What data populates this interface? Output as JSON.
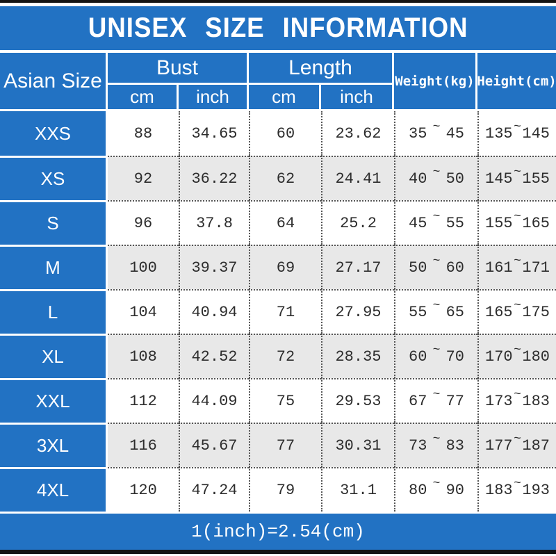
{
  "title": "UNISEX SIZE INFORMATION",
  "header": {
    "size_col": "Asian Size",
    "bust": {
      "label": "Bust",
      "sub": [
        "cm",
        "inch"
      ]
    },
    "length": {
      "label": "Length",
      "sub": [
        "cm",
        "inch"
      ]
    },
    "weight": "Weight(kg)",
    "height": "Height(cm)"
  },
  "tilde": "~",
  "rows": [
    {
      "size": "XXS",
      "bust_cm": "88",
      "bust_in": "34.65",
      "len_cm": "60",
      "len_in": "23.62",
      "w_min": "35",
      "w_max": "45",
      "h_min": "135",
      "h_max": "145"
    },
    {
      "size": "XS",
      "bust_cm": "92",
      "bust_in": "36.22",
      "len_cm": "62",
      "len_in": "24.41",
      "w_min": "40",
      "w_max": "50",
      "h_min": "145",
      "h_max": "155"
    },
    {
      "size": "S",
      "bust_cm": "96",
      "bust_in": "37.8",
      "len_cm": "64",
      "len_in": "25.2",
      "w_min": "45",
      "w_max": "55",
      "h_min": "155",
      "h_max": "165"
    },
    {
      "size": "M",
      "bust_cm": "100",
      "bust_in": "39.37",
      "len_cm": "69",
      "len_in": "27.17",
      "w_min": "50",
      "w_max": "60",
      "h_min": "161",
      "h_max": "171"
    },
    {
      "size": "L",
      "bust_cm": "104",
      "bust_in": "40.94",
      "len_cm": "71",
      "len_in": "27.95",
      "w_min": "55",
      "w_max": "65",
      "h_min": "165",
      "h_max": "175"
    },
    {
      "size": "XL",
      "bust_cm": "108",
      "bust_in": "42.52",
      "len_cm": "72",
      "len_in": "28.35",
      "w_min": "60",
      "w_max": "70",
      "h_min": "170",
      "h_max": "180"
    },
    {
      "size": "XXL",
      "bust_cm": "112",
      "bust_in": "44.09",
      "len_cm": "75",
      "len_in": "29.53",
      "w_min": "67",
      "w_max": "77",
      "h_min": "173",
      "h_max": "183"
    },
    {
      "size": "3XL",
      "bust_cm": "116",
      "bust_in": "45.67",
      "len_cm": "77",
      "len_in": "30.31",
      "w_min": "73",
      "w_max": "83",
      "h_min": "177",
      "h_max": "187"
    },
    {
      "size": "4XL",
      "bust_cm": "120",
      "bust_in": "47.24",
      "len_cm": "79",
      "len_in": "31.1",
      "w_min": "80",
      "w_max": "90",
      "h_min": "183",
      "h_max": "193"
    }
  ],
  "footer_note": "1(inch)=2.54(cm)",
  "colors": {
    "accent_blue": "#2272c3",
    "alt_row_gray": "#e8e8e8",
    "bar_black": "#141414",
    "data_text": "#2d2d2d"
  },
  "chart_data": {
    "type": "table",
    "title": "UNISEX SIZE INFORMATION",
    "columns": [
      "Asian Size",
      "Bust cm",
      "Bust inch",
      "Length cm",
      "Length inch",
      "Weight(kg)",
      "Height(cm)"
    ],
    "rows": [
      [
        "XXS",
        "88",
        "34.65",
        "60",
        "23.62",
        "35~45",
        "135~145"
      ],
      [
        "XS",
        "92",
        "36.22",
        "62",
        "24.41",
        "40~50",
        "145~155"
      ],
      [
        "S",
        "96",
        "37.8",
        "64",
        "25.2",
        "45~55",
        "155~165"
      ],
      [
        "M",
        "100",
        "39.37",
        "69",
        "27.17",
        "50~60",
        "161~171"
      ],
      [
        "L",
        "104",
        "40.94",
        "71",
        "27.95",
        "55~65",
        "165~175"
      ],
      [
        "XL",
        "108",
        "42.52",
        "72",
        "28.35",
        "60~70",
        "170~180"
      ],
      [
        "XXL",
        "112",
        "44.09",
        "75",
        "29.53",
        "67~77",
        "173~183"
      ],
      [
        "3XL",
        "116",
        "45.67",
        "77",
        "30.31",
        "73~83",
        "177~187"
      ],
      [
        "4XL",
        "120",
        "47.24",
        "79",
        "31.1",
        "80~90",
        "183~193"
      ]
    ],
    "note": "1(inch)=2.54(cm)"
  }
}
